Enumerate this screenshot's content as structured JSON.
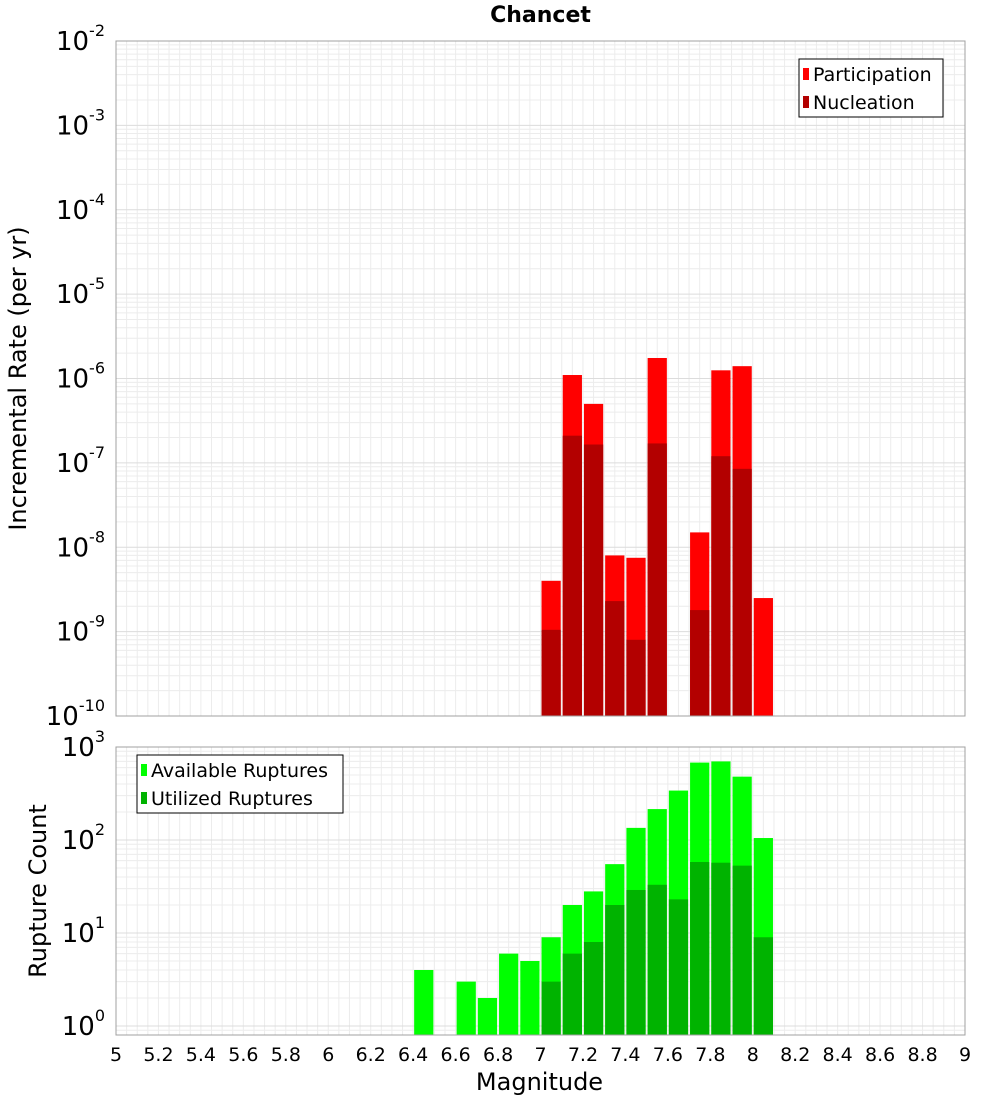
{
  "chart_data": [
    {
      "type": "bar",
      "title": "Chancet",
      "xlabel": "",
      "ylabel": "Incremental Rate (per yr)",
      "yscale": "log",
      "ylim": [
        1e-10,
        0.01
      ],
      "xlim": [
        5,
        9
      ],
      "ytick_labels": [
        {
          "base": "10",
          "exp": "-10"
        },
        {
          "base": "10",
          "exp": "-9"
        },
        {
          "base": "10",
          "exp": "-8"
        },
        {
          "base": "10",
          "exp": "-7"
        },
        {
          "base": "10",
          "exp": "-6"
        },
        {
          "base": "10",
          "exp": "-5"
        },
        {
          "base": "10",
          "exp": "-4"
        },
        {
          "base": "10",
          "exp": "-3"
        },
        {
          "base": "10",
          "exp": "-2"
        }
      ],
      "x": [
        7.05,
        7.15,
        7.25,
        7.35,
        7.45,
        7.55,
        7.65,
        7.75,
        7.85,
        7.95,
        8.05
      ],
      "series": [
        {
          "name": "Participation",
          "color": "#ff0000",
          "values": [
            4e-09,
            1.1e-06,
            5e-07,
            8e-09,
            7.5e-09,
            1.75e-06,
            null,
            1.5e-08,
            1.25e-06,
            1.4e-06,
            2.5e-09
          ]
        },
        {
          "name": "Nucleation",
          "color": "#b30000",
          "values": [
            1.05e-09,
            2.1e-07,
            1.65e-07,
            2.3e-09,
            8e-10,
            1.7e-07,
            null,
            1.8e-09,
            1.2e-07,
            8.5e-08,
            null
          ]
        }
      ],
      "legend_position": "top-right",
      "grid": true
    },
    {
      "type": "bar",
      "title": "",
      "xlabel": "Magnitude",
      "ylabel": "Rupture Count",
      "yscale": "log",
      "ylim": [
        0.8,
        1000
      ],
      "xlim": [
        5,
        9
      ],
      "ytick_labels": [
        {
          "base": "10",
          "exp": "0"
        },
        {
          "base": "10",
          "exp": "1"
        },
        {
          "base": "10",
          "exp": "2"
        },
        {
          "base": "10",
          "exp": "3"
        }
      ],
      "xtick_labels": [
        "5",
        "5.2",
        "5.4",
        "5.6",
        "5.8",
        "6",
        "6.2",
        "6.4",
        "6.6",
        "6.8",
        "7",
        "7.2",
        "7.4",
        "7.6",
        "7.8",
        "8",
        "8.2",
        "8.4",
        "8.6",
        "8.8",
        "9"
      ],
      "x": [
        6.45,
        6.55,
        6.65,
        6.75,
        6.85,
        6.95,
        7.05,
        7.15,
        7.25,
        7.35,
        7.45,
        7.55,
        7.65,
        7.75,
        7.85,
        7.95,
        8.05
      ],
      "series": [
        {
          "name": "Available Ruptures",
          "color": "#00ff00",
          "values": [
            4,
            null,
            3,
            2,
            6,
            5,
            9,
            20,
            28,
            55,
            135,
            215,
            340,
            680,
            700,
            480,
            105
          ]
        },
        {
          "name": "Utilized Ruptures",
          "color": "#00b300",
          "values": [
            null,
            null,
            null,
            null,
            null,
            null,
            3,
            6,
            8,
            20,
            29,
            33,
            23,
            58,
            57,
            53,
            9
          ]
        }
      ],
      "legend_position": "top-left",
      "grid": true
    }
  ]
}
